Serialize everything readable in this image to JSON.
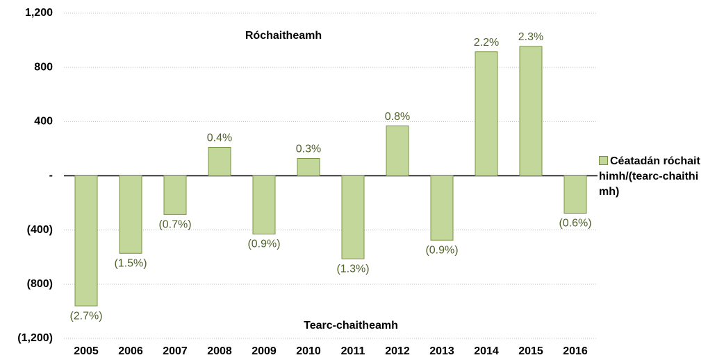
{
  "chart_data": {
    "type": "bar",
    "categories": [
      "2005",
      "2006",
      "2007",
      "2008",
      "2009",
      "2010",
      "2011",
      "2012",
      "2013",
      "2014",
      "2015",
      "2016"
    ],
    "series": [
      {
        "name": "Céatadán róchaithimh/(tearc-chaithimh)",
        "color": "#c4d79b",
        "values": [
          -960,
          -572,
          -286,
          210,
          -430,
          128,
          -613,
          368,
          -475,
          915,
          955,
          -276
        ],
        "percent_labels": [
          "(2.7%)",
          "(1.5%)",
          "(0.7%)",
          "0.4%",
          "(0.9%)",
          "0.3%",
          "(1.3%)",
          "0.8%",
          "(0.9%)",
          "2.2%",
          "2.3%",
          "(0.6%)"
        ]
      }
    ],
    "annotations": [
      "Róchaitheamh",
      "Tearc-chaitheamh"
    ],
    "ylim": [
      -1200,
      1200
    ],
    "yticks": [
      {
        "value": -1200,
        "label": "(1,200)"
      },
      {
        "value": -800,
        "label": "(800)"
      },
      {
        "value": -400,
        "label": "(400)"
      },
      {
        "value": 0,
        "label": "-"
      },
      400,
      800,
      {
        "value": 1200,
        "label": "1,200"
      }
    ],
    "grid": true,
    "legend": "right"
  }
}
